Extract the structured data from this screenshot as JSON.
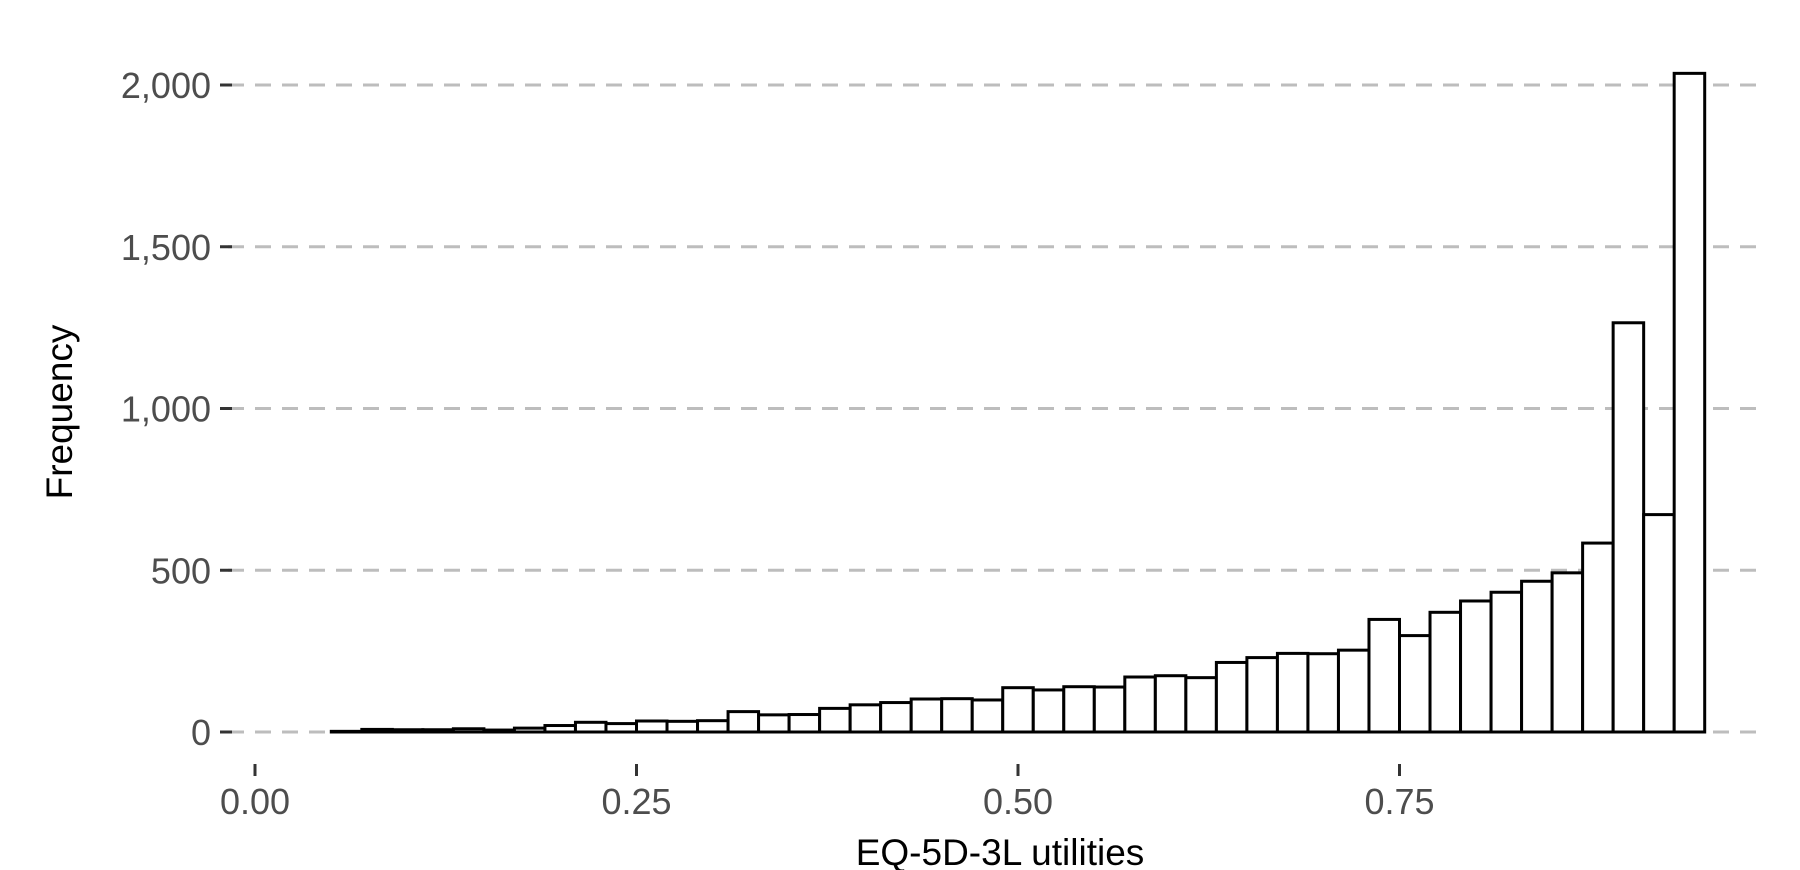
{
  "chart_data": {
    "type": "bar",
    "subtype": "histogram",
    "title": "",
    "xlabel": "EQ-5D-3L utilities",
    "ylabel": "Frequency",
    "xlim": [
      0.0,
      0.95
    ],
    "ylim": [
      0,
      2050
    ],
    "x_ticks": [
      0.0,
      0.25,
      0.5,
      0.75
    ],
    "x_tick_labels": [
      "0.00",
      "0.25",
      "0.50",
      "0.75"
    ],
    "y_ticks": [
      0,
      500,
      1000,
      1500,
      2000
    ],
    "y_tick_labels": [
      "0",
      "500",
      "1,000",
      "1,500",
      "2,000"
    ],
    "grid": "horizontal dashed",
    "legend": "none",
    "bin_width": 0.02,
    "bin_starts": [
      0.03,
      0.05,
      0.07,
      0.09,
      0.11,
      0.13,
      0.15,
      0.17,
      0.19,
      0.21,
      0.23,
      0.25,
      0.27,
      0.29,
      0.31,
      0.33,
      0.35,
      0.37,
      0.39,
      0.41,
      0.43,
      0.45,
      0.47,
      0.49,
      0.51,
      0.53,
      0.55,
      0.57,
      0.59,
      0.61,
      0.63,
      0.65,
      0.67,
      0.69,
      0.71,
      0.73,
      0.75,
      0.77,
      0.79,
      0.81,
      0.83,
      0.85,
      0.87,
      0.89,
      0.91,
      0.93
    ],
    "values": [
      0,
      2,
      8,
      7,
      7,
      10,
      6,
      12,
      20,
      30,
      26,
      34,
      33,
      35,
      63,
      53,
      54,
      73,
      84,
      91,
      102,
      103,
      99,
      137,
      130,
      140,
      139,
      170,
      174,
      168,
      215,
      230,
      243,
      242,
      253,
      348,
      298,
      370,
      405,
      432,
      466,
      492,
      584,
      1265,
      672,
      2036
    ],
    "colors": {
      "bar_fill": "#ffffff",
      "bar_stroke": "#000000",
      "grid": "#bdbdbd",
      "tick_label": "#4d4d4d"
    }
  }
}
